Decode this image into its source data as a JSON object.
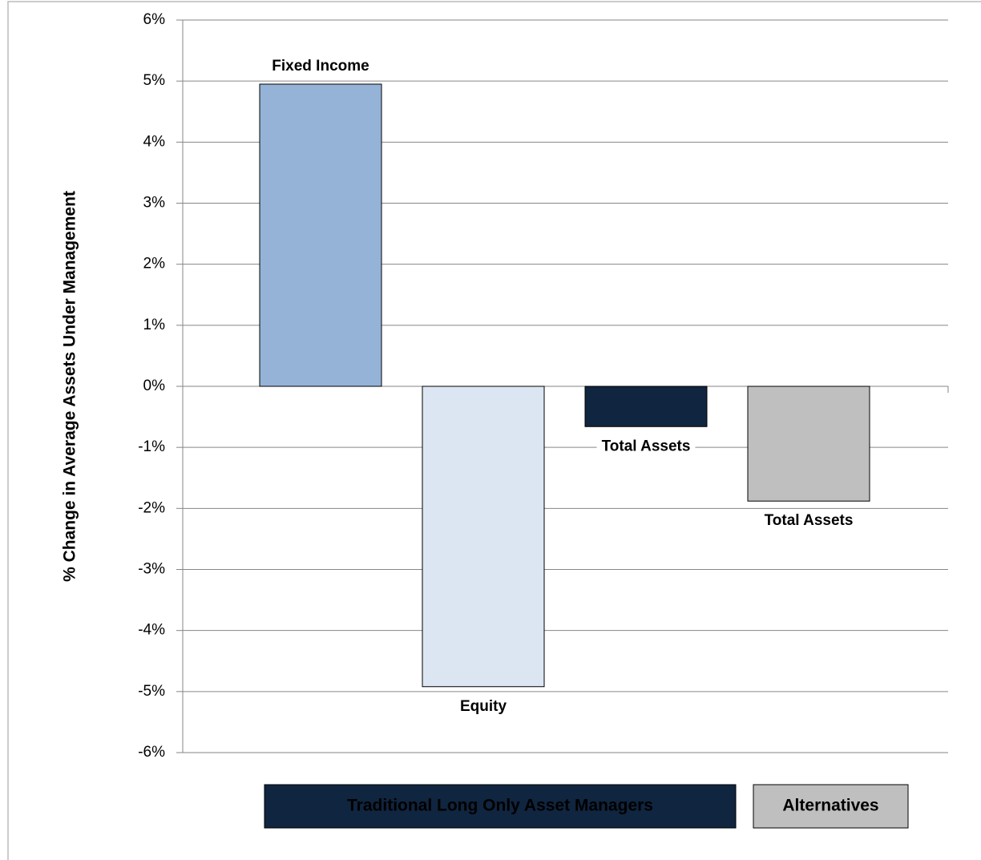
{
  "chart_data": {
    "type": "bar",
    "y_label": "% Change in Average Assets Under Management",
    "categories": [
      "Fixed Income",
      "Equity",
      "Total Assets",
      "Total Assets"
    ],
    "values": [
      4.95,
      -4.92,
      -0.66,
      -1.88
    ],
    "colors": [
      "#95b3d7",
      "#dce6f2",
      "#10253f",
      "#bfbfbf"
    ],
    "groups": [
      {
        "name": "Traditional Long Only Asset Managers",
        "color": "#10253f",
        "text_color": "#ffffff"
      },
      {
        "name": "Alternatives",
        "color": "#bfbfbf",
        "text_color": "#000000"
      }
    ],
    "ylim": [
      -6,
      6
    ],
    "yticks": [
      {
        "value": -6,
        "label": "-6%"
      },
      {
        "value": -5,
        "label": "-5%"
      },
      {
        "value": -4,
        "label": "-4%"
      },
      {
        "value": -3,
        "label": "-3%"
      },
      {
        "value": -2,
        "label": "-2%"
      },
      {
        "value": -1,
        "label": "-1%"
      },
      {
        "value": 0,
        "label": "0%"
      },
      {
        "value": 1,
        "label": "1%"
      },
      {
        "value": 2,
        "label": "2%"
      },
      {
        "value": 3,
        "label": "3%"
      },
      {
        "value": 4,
        "label": "4%"
      },
      {
        "value": 5,
        "label": "5%"
      },
      {
        "value": 6,
        "label": "6%"
      }
    ],
    "grid": true
  }
}
